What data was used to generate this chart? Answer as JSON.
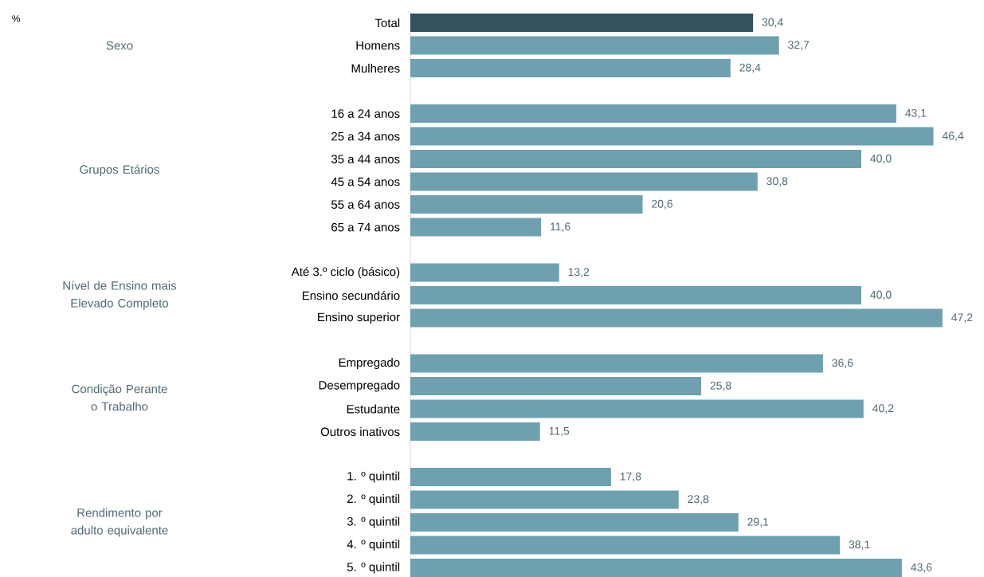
{
  "chart_data": {
    "type": "bar",
    "orientation": "horizontal",
    "categories": [
      "Total",
      "Homens",
      "Mulheres",
      null,
      "16 a 24 anos",
      "25 a 34 anos",
      "35 a 44 anos",
      "45 a 54 anos",
      "55 a 64 anos",
      "65 a 74 anos",
      null,
      "Até 3.º ciclo (básico)",
      "Ensino secundário",
      "Ensino superior",
      null,
      "Empregado",
      "Desempregado",
      "Estudante",
      "Outros inativos",
      null,
      "1. º quintil",
      "2. º quintil",
      "3. º quintil",
      "4. º quintil",
      "5. º quintil"
    ],
    "values": [
      30.4,
      32.7,
      28.4,
      null,
      43.1,
      46.4,
      40.0,
      30.8,
      20.6,
      11.6,
      null,
      13.2,
      40.0,
      47.2,
      null,
      36.6,
      25.8,
      40.2,
      11.5,
      null,
      17.8,
      23.8,
      29.1,
      38.1,
      43.6
    ],
    "value_labels": [
      "30,4",
      "32,7",
      "28,4",
      null,
      "43,1",
      "46,4",
      "40,0",
      "30,8",
      "20,6",
      "11,6",
      null,
      "13,2",
      "40,0",
      "47,2",
      null,
      "36,6",
      "25,8",
      "40,2",
      "11,5",
      null,
      "17,8",
      "23,8",
      "29,1",
      "38,1",
      "43,6"
    ],
    "colors": [
      "#34525e",
      "#6fa0b0",
      "#6fa0b0",
      null,
      "#6fa0b0",
      "#6fa0b0",
      "#6fa0b0",
      "#6fa0b0",
      "#6fa0b0",
      "#6fa0b0",
      null,
      "#6fa0b0",
      "#6fa0b0",
      "#6fa0b0",
      null,
      "#6fa0b0",
      "#6fa0b0",
      "#6fa0b0",
      "#6fa0b0",
      null,
      "#6fa0b0",
      "#6fa0b0",
      "#6fa0b0",
      "#6fa0b0",
      "#6fa0b0"
    ],
    "annotations": [
      "Sexo",
      "Grupos Etários",
      "Nível de Ensino mais Elevado Completo",
      "Condição Perante o Trabalho",
      "Rendimento por adulto equivalente",
      "%"
    ],
    "tick_labels": "y"
  }
}
